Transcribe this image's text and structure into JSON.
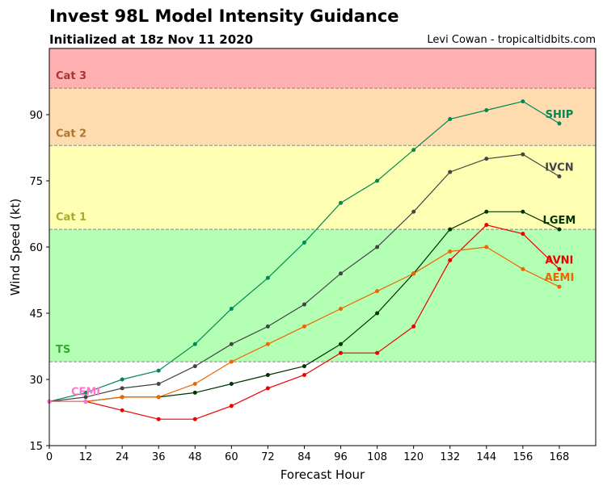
{
  "header": {
    "title": "Invest 98L Model Intensity Guidance",
    "subtitle": "Initialized at 18z Nov 11 2020",
    "credit": "Levi Cowan - tropicaltidbits.com"
  },
  "chart_data": {
    "type": "line",
    "xlabel": "Forecast Hour",
    "ylabel": "Wind Speed (kt)",
    "xlim": [
      0,
      180
    ],
    "ylim": [
      15,
      105
    ],
    "xticks": [
      0,
      12,
      24,
      36,
      48,
      60,
      72,
      84,
      96,
      108,
      120,
      132,
      144,
      156,
      168
    ],
    "yticks": [
      15,
      30,
      45,
      60,
      75,
      90
    ],
    "grid": false,
    "bands": [
      {
        "label": "",
        "from": 15,
        "to": 34,
        "color": "#ffffff"
      },
      {
        "label": "TS",
        "from": 34,
        "to": 64,
        "color": "#b3ffb3",
        "label_color": "#33aa33"
      },
      {
        "label": "Cat 1",
        "from": 64,
        "to": 83,
        "color": "#ffffb3",
        "label_color": "#aaaa33"
      },
      {
        "label": "Cat 2",
        "from": 83,
        "to": 96,
        "color": "#ffdcb0",
        "label_color": "#aa7733"
      },
      {
        "label": "Cat 3",
        "from": 96,
        "to": 105,
        "color": "#ffb0b0",
        "label_color": "#aa3333"
      }
    ],
    "series": [
      {
        "name": "SHIP",
        "color": "#008855",
        "x": [
          0,
          12,
          24,
          36,
          48,
          60,
          72,
          84,
          96,
          108,
          120,
          132,
          144,
          156,
          168
        ],
        "values": [
          25,
          27,
          30,
          32,
          38,
          46,
          53,
          61,
          70,
          75,
          82,
          89,
          91,
          93,
          88
        ]
      },
      {
        "name": "IVCN",
        "color": "#444444",
        "x": [
          0,
          12,
          24,
          36,
          48,
          60,
          72,
          84,
          96,
          108,
          120,
          132,
          144,
          156,
          168
        ],
        "values": [
          25,
          26,
          28,
          29,
          33,
          38,
          42,
          47,
          54,
          60,
          68,
          77,
          80,
          81,
          76
        ]
      },
      {
        "name": "LGEM",
        "color": "#003300",
        "x": [
          0,
          12,
          24,
          36,
          48,
          60,
          72,
          84,
          96,
          108,
          120,
          132,
          144,
          156,
          168
        ],
        "values": [
          25,
          25,
          26,
          26,
          27,
          29,
          31,
          33,
          38,
          45,
          54,
          64,
          68,
          68,
          64
        ]
      },
      {
        "name": "AVNI",
        "color": "#ee0000",
        "x": [
          0,
          12,
          24,
          36,
          48,
          60,
          72,
          84,
          96,
          108,
          120,
          132,
          144,
          156,
          168
        ],
        "values": [
          25,
          25,
          23,
          21,
          21,
          24,
          28,
          31,
          36,
          36,
          42,
          57,
          65,
          63,
          55
        ]
      },
      {
        "name": "AEMI",
        "color": "#ee6600",
        "x": [
          0,
          12,
          24,
          36,
          48,
          60,
          72,
          84,
          96,
          108,
          120,
          132,
          144,
          156,
          168
        ],
        "values": [
          25,
          25,
          26,
          26,
          29,
          34,
          38,
          42,
          46,
          50,
          54,
          59,
          60,
          55,
          51
        ]
      },
      {
        "name": "CEMI",
        "color": "#ff77cc",
        "x": [
          0,
          12
        ],
        "values": [
          25,
          25
        ]
      }
    ]
  }
}
